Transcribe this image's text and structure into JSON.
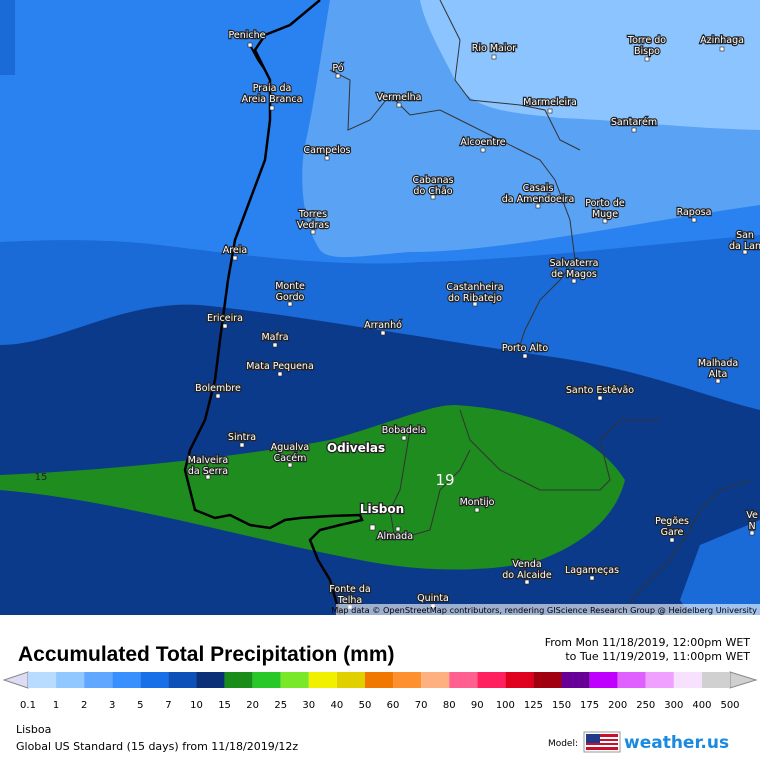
{
  "map": {
    "places": [
      {
        "lines": [
          "Peniche"
        ]
      },
      {
        "lines": [
          "Pó"
        ]
      },
      {
        "lines": [
          "Rio Maior"
        ]
      },
      {
        "lines": [
          "Torre do",
          "Bispo"
        ]
      },
      {
        "lines": [
          "Azinhaga"
        ]
      },
      {
        "lines": [
          "Praia da",
          "Areia Branca"
        ]
      },
      {
        "lines": [
          "Vermelha"
        ]
      },
      {
        "lines": [
          "Marmeleira"
        ]
      },
      {
        "lines": [
          "Santarém"
        ]
      },
      {
        "lines": [
          "Alcoentre"
        ]
      },
      {
        "lines": [
          "Campelos"
        ]
      },
      {
        "lines": [
          "Cabanas",
          "do Chão"
        ]
      },
      {
        "lines": [
          "Casais",
          "da Amendoeira"
        ]
      },
      {
        "lines": [
          "Porto de",
          "Muge"
        ]
      },
      {
        "lines": [
          "Raposa"
        ]
      },
      {
        "lines": [
          "Torres",
          "Vedras"
        ]
      },
      {
        "lines": [
          "San",
          "da Lan"
        ]
      },
      {
        "lines": [
          "Areia"
        ]
      },
      {
        "lines": [
          "Salvaterra",
          "de Magos"
        ]
      },
      {
        "lines": [
          "Monte",
          "Gordo"
        ]
      },
      {
        "lines": [
          "Castanheira",
          "do Ribatejo"
        ]
      },
      {
        "lines": [
          "Ericeira"
        ]
      },
      {
        "lines": [
          "Arranhó"
        ]
      },
      {
        "lines": [
          "Mafra"
        ]
      },
      {
        "lines": [
          "Porto Alto"
        ]
      },
      {
        "lines": [
          "Mata Pequena"
        ]
      },
      {
        "lines": [
          "Malhada",
          "Alta"
        ]
      },
      {
        "lines": [
          "Bolembre"
        ]
      },
      {
        "lines": [
          "Santo Estêvão"
        ]
      },
      {
        "lines": [
          "Bobadela"
        ]
      },
      {
        "lines": [
          "Sintra"
        ]
      },
      {
        "lines": [
          "Agualva",
          "Cacém"
        ]
      },
      {
        "lines": [
          "Malveira",
          "da Serra"
        ]
      },
      {
        "lines": [
          "Montijo"
        ]
      },
      {
        "lines": [
          "Almada"
        ]
      },
      {
        "lines": [
          "Pegões",
          "Gare"
        ]
      },
      {
        "lines": [
          "Venda",
          "do Alcaide"
        ]
      },
      {
        "lines": [
          "Lagameças"
        ]
      },
      {
        "lines": [
          "Fonte da",
          "Telha"
        ]
      },
      {
        "lines": [
          "Quinta"
        ]
      },
      {
        "lines": [
          "Ve",
          "N"
        ]
      }
    ],
    "major_places": [
      "Odivelas",
      "Lisbon"
    ],
    "contour_labels": [
      "15",
      "19"
    ],
    "attribution": "Map data © OpenStreetMap contributors, rendering GIScience Research Group @ Heidelberg University"
  },
  "legend": {
    "title": "Accumulated Total Precipitation (mm)",
    "period": [
      "From Mon 11/18/2019, 12:00pm WET",
      "to Tue 11/19/2019, 11:00pm WET"
    ],
    "labels": [
      "0.1",
      "1",
      "2",
      "3",
      "5",
      "7",
      "10",
      "15",
      "20",
      "25",
      "30",
      "40",
      "50",
      "60",
      "70",
      "80",
      "90",
      "100",
      "125",
      "150",
      "175",
      "200",
      "250",
      "300",
      "400",
      "500"
    ],
    "colors": [
      "#dcdcf4",
      "#b8dcff",
      "#90c8ff",
      "#60a8ff",
      "#3890ff",
      "#1870e8",
      "#0c50b8",
      "#0c3078",
      "#1a8c1a",
      "#28c828",
      "#78e828",
      "#f0f000",
      "#e0d000",
      "#f07800",
      "#ff9030",
      "#ffb080",
      "#ff6090",
      "#ff2060",
      "#e00020",
      "#a00010",
      "#680098",
      "#c000ff",
      "#e060ff",
      "#f0a0ff",
      "#f8e0ff",
      "#d0d0d0"
    ],
    "location": "Lisboa",
    "model": "Global US Standard (15 days)  from  11/18/2019/12z",
    "model_label": "Model:",
    "brand": "weather.us"
  }
}
